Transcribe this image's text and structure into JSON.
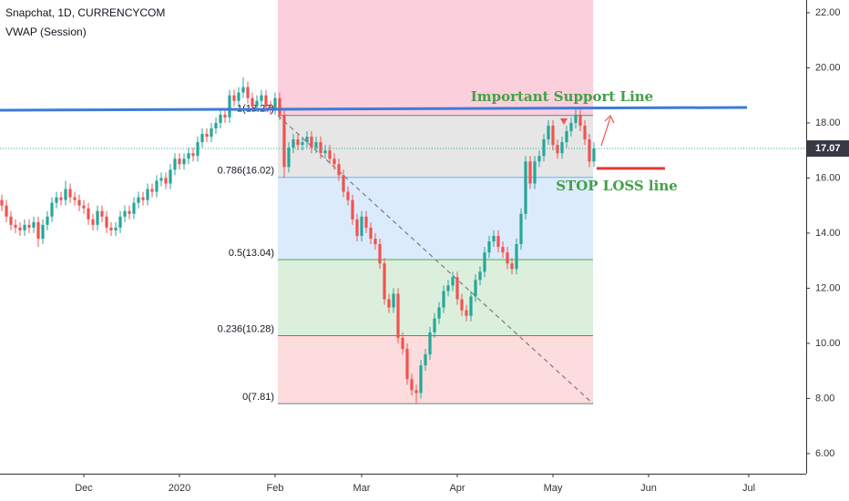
{
  "chart_data": {
    "type": "candlestick",
    "title": "Snapchat, 1D, CURRENCYCOM",
    "subtitle": "VWAP (Session)",
    "up_color": "#26a69a",
    "down_color": "#ef5350",
    "grid": false,
    "xlim": [
      -0.4,
      176.6
    ],
    "xticks": [
      {
        "value": 18,
        "label": "Dec"
      },
      {
        "value": 39,
        "label": "2020"
      },
      {
        "value": 60,
        "label": "Feb"
      },
      {
        "value": 79,
        "label": "Mar"
      },
      {
        "value": 100,
        "label": "Apr"
      },
      {
        "value": 121,
        "label": "May"
      },
      {
        "value": 142,
        "label": "Jun"
      },
      {
        "value": 164,
        "label": "Jul"
      }
    ],
    "ylim": [
      5.27,
      22.46
    ],
    "yticks": [
      {
        "value": 6,
        "label": "6.00"
      },
      {
        "value": 8,
        "label": "8.00"
      },
      {
        "value": 10,
        "label": "10.00"
      },
      {
        "value": 12,
        "label": "12.00"
      },
      {
        "value": 14,
        "label": "14.00"
      },
      {
        "value": 16,
        "label": "16.00"
      },
      {
        "value": 18,
        "label": "18.00"
      },
      {
        "value": 20,
        "label": "20.00"
      },
      {
        "value": 22,
        "label": "22.00"
      }
    ],
    "open": [
      15.2,
      15.0,
      14.6,
      14.3,
      14.2,
      14.1,
      14.3,
      14.2,
      14.4,
      13.8,
      14.3,
      14.6,
      15.1,
      15.3,
      15.2,
      15.6,
      15.3,
      15.2,
      15.0,
      14.9,
      14.5,
      14.3,
      14.8,
      14.6,
      14.2,
      14.1,
      14.2,
      14.6,
      14.8,
      14.7,
      15.1,
      15.3,
      15.2,
      15.6,
      15.5,
      15.9,
      16.0,
      15.8,
      16.3,
      16.7,
      16.5,
      16.7,
      16.9,
      16.8,
      17.3,
      17.6,
      17.5,
      17.8,
      18.0,
      18.3,
      18.2,
      19.0,
      18.8,
      19.1,
      19.3,
      18.9,
      18.6,
      18.8,
      19.0,
      18.6,
      18.5,
      18.9,
      18.3,
      16.4,
      17.1,
      17.4,
      17.2,
      17.3,
      17.5,
      17.1,
      17.3,
      16.9,
      17.0,
      16.7,
      16.5,
      16.1,
      15.5,
      15.2,
      14.5,
      13.9,
      14.6,
      14.2,
      13.8,
      13.6,
      12.9,
      11.6,
      11.3,
      11.8,
      10.2,
      9.8,
      8.7,
      8.3,
      8.2,
      9.2,
      9.6,
      10.4,
      10.9,
      11.3,
      11.9,
      12.1,
      12.4,
      11.6,
      11.2,
      11.0,
      11.7,
      12.3,
      12.6,
      13.3,
      13.7,
      13.9,
      13.5,
      13.3,
      12.9,
      12.7,
      13.6,
      14.7,
      16.6,
      15.8,
      16.6,
      16.8,
      17.4,
      17.9,
      17.2,
      16.9,
      17.3,
      17.7,
      18.0,
      18.3,
      17.9,
      17.4,
      16.6
    ],
    "high": [
      15.4,
      15.2,
      14.8,
      14.5,
      14.4,
      14.5,
      14.5,
      14.6,
      14.6,
      14.5,
      14.8,
      15.3,
      15.5,
      15.5,
      15.9,
      15.8,
      15.5,
      15.4,
      15.2,
      15.1,
      14.7,
      15.0,
      15.0,
      14.8,
      14.4,
      14.4,
      14.8,
      15.0,
      15.0,
      15.3,
      15.5,
      15.5,
      15.8,
      15.8,
      16.1,
      16.2,
      16.2,
      16.5,
      16.9,
      16.9,
      16.9,
      17.1,
      17.1,
      17.5,
      17.8,
      17.8,
      18.0,
      18.2,
      18.5,
      18.5,
      19.2,
      19.2,
      19.3,
      19.65,
      19.5,
      19.1,
      19.0,
      19.2,
      19.2,
      18.8,
      19.1,
      19.1,
      18.5,
      17.3,
      17.6,
      17.6,
      17.5,
      17.7,
      17.7,
      17.5,
      17.5,
      17.2,
      17.2,
      16.9,
      16.7,
      16.3,
      15.7,
      15.4,
      14.7,
      14.8,
      14.8,
      14.4,
      14.0,
      13.8,
      13.1,
      11.8,
      12.0,
      12.0,
      10.4,
      10.0,
      8.9,
      8.5,
      9.4,
      9.8,
      10.6,
      11.1,
      11.5,
      12.1,
      12.3,
      12.6,
      12.6,
      11.8,
      11.4,
      11.9,
      12.5,
      12.8,
      13.5,
      13.9,
      14.1,
      14.1,
      13.7,
      13.5,
      13.1,
      13.8,
      14.9,
      16.8,
      16.8,
      16.8,
      17.0,
      17.6,
      18.1,
      18.1,
      17.4,
      17.5,
      17.9,
      18.2,
      18.5,
      18.5,
      18.1,
      17.6,
      17.3
    ],
    "low": [
      14.8,
      14.4,
      14.1,
      14.0,
      13.9,
      13.9,
      14.0,
      14.0,
      13.5,
      13.6,
      14.1,
      14.4,
      14.9,
      15.0,
      15.0,
      15.1,
      15.0,
      14.8,
      14.7,
      14.3,
      14.1,
      14.1,
      14.4,
      14.0,
      13.9,
      13.9,
      14.0,
      14.4,
      14.5,
      14.5,
      14.9,
      15.0,
      15.0,
      15.3,
      15.3,
      15.7,
      15.6,
      15.6,
      16.1,
      16.3,
      16.3,
      16.5,
      16.6,
      16.6,
      17.1,
      17.3,
      17.3,
      17.6,
      17.8,
      18.0,
      18.0,
      18.6,
      18.6,
      18.9,
      18.7,
      18.4,
      18.4,
      18.6,
      18.4,
      18.3,
      18.3,
      18.1,
      16.0,
      16.2,
      16.9,
      17.0,
      17.0,
      17.1,
      16.9,
      16.9,
      16.7,
      16.7,
      16.5,
      16.3,
      15.9,
      15.3,
      15.0,
      14.3,
      13.7,
      13.7,
      14.0,
      13.6,
      13.4,
      12.7,
      11.4,
      11.1,
      11.1,
      10.0,
      9.6,
      8.5,
      8.1,
      7.81,
      8.0,
      9.0,
      9.4,
      10.2,
      10.7,
      11.1,
      11.7,
      11.9,
      11.4,
      11.0,
      10.8,
      10.8,
      11.5,
      12.1,
      12.4,
      13.1,
      13.5,
      13.3,
      13.1,
      12.7,
      12.5,
      12.5,
      13.4,
      14.5,
      15.6,
      15.6,
      16.4,
      16.6,
      17.2,
      17.0,
      16.7,
      16.7,
      17.1,
      17.5,
      17.8,
      17.7,
      17.2,
      16.4,
      16.4
    ],
    "close": [
      15.0,
      14.6,
      14.3,
      14.2,
      14.1,
      14.3,
      14.2,
      14.4,
      13.8,
      14.3,
      14.6,
      15.1,
      15.3,
      15.2,
      15.6,
      15.3,
      15.2,
      15.0,
      14.9,
      14.5,
      14.3,
      14.8,
      14.6,
      14.2,
      14.1,
      14.2,
      14.6,
      14.8,
      14.7,
      15.1,
      15.3,
      15.2,
      15.6,
      15.5,
      15.9,
      16.0,
      15.8,
      16.3,
      16.7,
      16.5,
      16.7,
      16.9,
      16.8,
      17.3,
      17.6,
      17.5,
      17.8,
      18.0,
      18.3,
      18.2,
      19.0,
      18.8,
      19.1,
      19.3,
      18.9,
      18.6,
      18.8,
      19.0,
      18.6,
      18.5,
      18.9,
      18.3,
      16.4,
      17.1,
      17.4,
      17.2,
      17.3,
      17.5,
      17.1,
      17.3,
      16.9,
      17.0,
      16.7,
      16.5,
      16.1,
      15.5,
      15.2,
      14.5,
      13.9,
      14.6,
      14.2,
      13.8,
      13.6,
      12.9,
      11.6,
      11.3,
      11.8,
      10.2,
      9.8,
      8.7,
      8.3,
      8.2,
      9.2,
      9.6,
      10.4,
      10.9,
      11.3,
      11.9,
      12.1,
      12.4,
      11.6,
      11.2,
      11.0,
      11.7,
      12.3,
      12.6,
      13.3,
      13.7,
      13.9,
      13.5,
      13.3,
      12.9,
      12.7,
      13.6,
      14.7,
      16.6,
      15.8,
      16.6,
      16.8,
      17.4,
      17.9,
      17.2,
      16.9,
      17.3,
      17.7,
      18.0,
      18.3,
      17.9,
      17.4,
      16.6,
      17.07
    ],
    "current_price_color": "#26a69a",
    "fib": {
      "levels": [
        {
          "label": "1(18.27)",
          "price": 18.27,
          "color": "#787b86"
        },
        {
          "label": "0.786(16.02)",
          "price": 16.02,
          "color": "#64b5f6"
        },
        {
          "label": "0.5(13.04)",
          "price": 13.04,
          "color": "#4caf50"
        },
        {
          "label": "0.236(10.28)",
          "price": 10.28,
          "color": "#f44336"
        },
        {
          "label": "0(7.81)",
          "price": 7.81,
          "color": "#787b86"
        }
      ],
      "zones": [
        "#fccfdc",
        "#e6e6e6",
        "#dcebfb",
        "#dcefdc",
        "#fcdcdc"
      ]
    },
    "support_line": {
      "price_start": 18.46,
      "price_end": 18.56,
      "color": "#3d7bd9",
      "label": "Important Support Line"
    },
    "stop_loss": {
      "price": 16.35,
      "color": "#e53935",
      "label": "STOP LOSS line"
    }
  }
}
